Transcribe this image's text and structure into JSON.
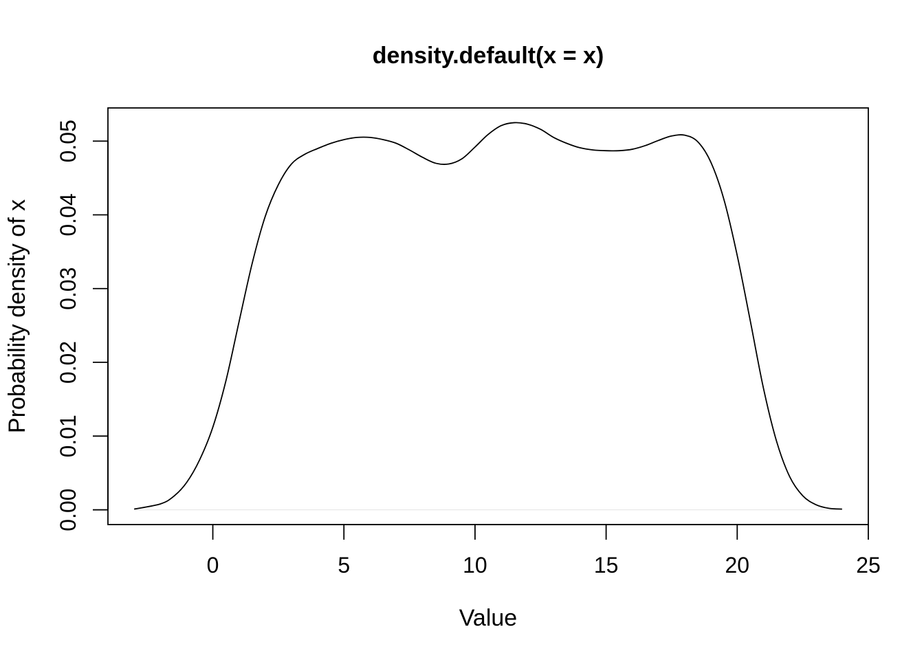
{
  "chart_data": {
    "type": "line",
    "title": "density.default(x = x)",
    "xlabel": "Value",
    "ylabel": "Probability density of x",
    "xlim": [
      -4.0,
      25.0
    ],
    "ylim": [
      -0.002,
      0.0545
    ],
    "x_ticks": [
      0,
      5,
      10,
      15,
      20,
      25
    ],
    "x_tick_labels": [
      "0",
      "5",
      "10",
      "15",
      "20",
      "25"
    ],
    "y_ticks": [
      0.0,
      0.01,
      0.02,
      0.03,
      0.04,
      0.05
    ],
    "y_tick_labels": [
      "0.00",
      "0.01",
      "0.02",
      "0.03",
      "0.04",
      "0.05"
    ],
    "grid": false,
    "legend": "none",
    "series": [
      {
        "x": [
          -3.0,
          -2.0,
          -1.5,
          -1.0,
          -0.5,
          0.0,
          0.5,
          1.0,
          1.5,
          2.0,
          2.5,
          3.0,
          3.5,
          4.0,
          4.5,
          5.0,
          5.5,
          6.0,
          6.5,
          7.0,
          7.5,
          8.0,
          8.5,
          9.0,
          9.5,
          10.0,
          10.5,
          11.0,
          11.5,
          12.0,
          12.5,
          13.0,
          13.5,
          14.0,
          14.5,
          15.0,
          15.5,
          16.0,
          16.5,
          17.0,
          17.5,
          18.0,
          18.5,
          19.0,
          19.5,
          20.0,
          20.5,
          21.0,
          21.5,
          22.0,
          22.5,
          23.0,
          23.5,
          24.0
        ],
        "values": [
          0.0001,
          0.0008,
          0.0018,
          0.0037,
          0.0068,
          0.0112,
          0.0175,
          0.0255,
          0.0334,
          0.0398,
          0.0441,
          0.0469,
          0.0482,
          0.049,
          0.0497,
          0.0502,
          0.0505,
          0.0505,
          0.0502,
          0.0497,
          0.0488,
          0.0478,
          0.047,
          0.0469,
          0.0476,
          0.0492,
          0.0509,
          0.0521,
          0.0525,
          0.0523,
          0.0516,
          0.0505,
          0.0497,
          0.0491,
          0.0488,
          0.0487,
          0.0487,
          0.0489,
          0.0494,
          0.0501,
          0.0507,
          0.0508,
          0.0499,
          0.0471,
          0.042,
          0.0345,
          0.0256,
          0.0165,
          0.0093,
          0.0045,
          0.0019,
          0.0007,
          0.0002,
          0.0001
        ]
      }
    ]
  }
}
